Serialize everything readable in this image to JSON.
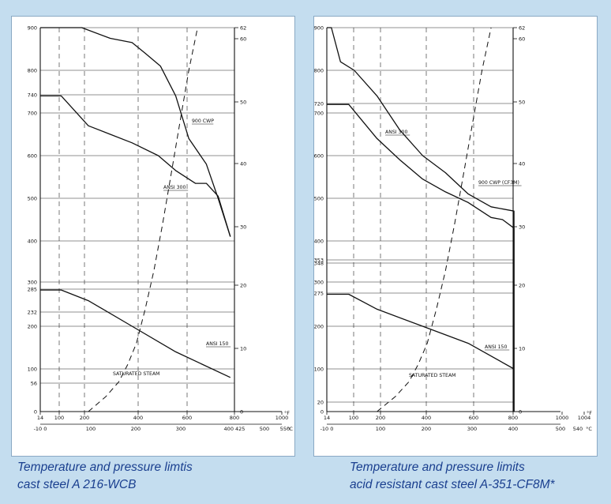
{
  "captions": {
    "left": [
      "Temperature and pressure limtis",
      "cast steel A 216-WCB"
    ],
    "right": [
      "Temperature and pressure limits",
      "acid resistant cast steel A-351-CF8M*"
    ]
  },
  "chart_data": [
    {
      "type": "line",
      "y_ticks_left": [
        "900",
        "800",
        "740",
        "700",
        "600",
        "500",
        "400",
        "300",
        "285",
        "232",
        "200",
        "100",
        "56",
        "0"
      ],
      "y_ticks_right": [
        "62",
        "60",
        "50",
        "40",
        "30",
        "20",
        "10",
        "0"
      ],
      "x_ticks_f": [
        "14",
        "100",
        "200",
        "400",
        "600",
        "800",
        "1000"
      ],
      "x_unit_f": "°F",
      "x_ticks_c": [
        "-10 0",
        "100",
        "200",
        "300",
        "400 425",
        "500",
        "550",
        "°C"
      ],
      "ylim_psi": [
        0,
        900
      ],
      "xlim_c": [
        -10,
        550
      ],
      "series": [
        {
          "name": "900 CWP",
          "style": "solid",
          "x": [
            -10,
            85,
            150,
            200,
            230,
            265,
            300,
            330,
            370,
            397,
            425
          ],
          "y": [
            900,
            900,
            875,
            865,
            840,
            810,
            740,
            640,
            580,
            500,
            410
          ]
        },
        {
          "name": "ANSI 300",
          "style": "solid",
          "x": [
            -10,
            38,
            100,
            150,
            200,
            260,
            300,
            345,
            370,
            397,
            425
          ],
          "y": [
            740,
            740,
            670,
            650,
            630,
            600,
            565,
            535,
            535,
            505,
            410
          ]
        },
        {
          "name": "ANSI 150",
          "style": "solid",
          "x": [
            -10,
            38,
            100,
            200,
            300,
            425
          ],
          "y": [
            285,
            285,
            260,
            200,
            140,
            80
          ]
        },
        {
          "name": "SATURATED STEAM",
          "style": "dashed",
          "x": [
            100,
            140,
            170,
            190,
            210,
            230,
            250,
            270,
            290,
            310,
            330,
            350
          ],
          "y": [
            0,
            35,
            70,
            110,
            160,
            240,
            330,
            440,
            560,
            680,
            800,
            900
          ]
        }
      ]
    },
    {
      "type": "line",
      "y_ticks_left": [
        "900",
        "800",
        "720",
        "700",
        "600",
        "500",
        "400",
        "353",
        "348",
        "300",
        "275",
        "200",
        "100",
        "20",
        "0"
      ],
      "y_ticks_right": [
        "62",
        "60",
        "50",
        "40",
        "30",
        "20",
        "10",
        "0"
      ],
      "x_ticks_f": [
        "14",
        "100",
        "200",
        "400",
        "600",
        "800",
        "1000",
        "1004"
      ],
      "x_unit_f": "°F",
      "x_ticks_c": [
        "-10 0",
        "100",
        "200",
        "300",
        "400",
        "500",
        "540",
        "°C"
      ],
      "ylim_psi": [
        0,
        900
      ],
      "xlim_c": [
        -10,
        540
      ],
      "series": [
        {
          "name": "900 CWP (CF3M)",
          "style": "solid",
          "x": [
            -10,
            0,
            20,
            50,
            100,
            150,
            200,
            250,
            300,
            350,
            400,
            400
          ],
          "y": [
            900,
            900,
            820,
            800,
            740,
            660,
            600,
            560,
            510,
            480,
            470,
            0
          ]
        },
        {
          "name": "ANSI 300",
          "style": "solid",
          "x": [
            -10,
            38,
            100,
            150,
            200,
            250,
            300,
            350,
            375,
            400,
            400
          ],
          "y": [
            720,
            720,
            640,
            590,
            545,
            515,
            490,
            455,
            450,
            430,
            0
          ]
        },
        {
          "name": "ANSI 150",
          "style": "solid",
          "x": [
            -10,
            38,
            100,
            200,
            300,
            400
          ],
          "y": [
            275,
            275,
            240,
            200,
            160,
            100
          ]
        },
        {
          "name": "SATURATED STEAM",
          "style": "dashed",
          "x": [
            100,
            140,
            170,
            190,
            210,
            230,
            250,
            270,
            290,
            310,
            330,
            350
          ],
          "y": [
            0,
            35,
            70,
            110,
            160,
            240,
            330,
            440,
            560,
            680,
            800,
            900
          ]
        }
      ]
    }
  ]
}
